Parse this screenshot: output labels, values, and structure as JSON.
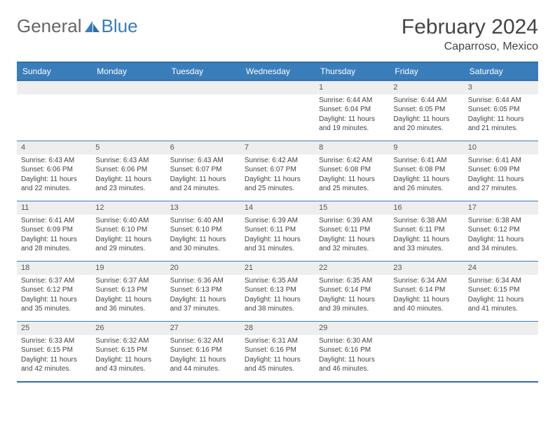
{
  "brand": {
    "part1": "General",
    "part2": "Blue",
    "color": "#3A7DBB"
  },
  "title": "February 2024",
  "location": "Caparroso, Mexico",
  "theme": {
    "header_bg": "#3A7DBB",
    "header_text": "#ffffff",
    "daynum_bg": "#EEEEEE",
    "border": "#2E6FA6",
    "text": "#333333"
  },
  "weekdays": [
    "Sunday",
    "Monday",
    "Tuesday",
    "Wednesday",
    "Thursday",
    "Friday",
    "Saturday"
  ],
  "grid": {
    "cols": 7,
    "leading_blanks": 4,
    "trailing_blanks": 2
  },
  "days": [
    {
      "n": "1",
      "sunrise": "Sunrise: 6:44 AM",
      "sunset": "Sunset: 6:04 PM",
      "daylight": "Daylight: 11 hours and 19 minutes."
    },
    {
      "n": "2",
      "sunrise": "Sunrise: 6:44 AM",
      "sunset": "Sunset: 6:05 PM",
      "daylight": "Daylight: 11 hours and 20 minutes."
    },
    {
      "n": "3",
      "sunrise": "Sunrise: 6:44 AM",
      "sunset": "Sunset: 6:05 PM",
      "daylight": "Daylight: 11 hours and 21 minutes."
    },
    {
      "n": "4",
      "sunrise": "Sunrise: 6:43 AM",
      "sunset": "Sunset: 6:06 PM",
      "daylight": "Daylight: 11 hours and 22 minutes."
    },
    {
      "n": "5",
      "sunrise": "Sunrise: 6:43 AM",
      "sunset": "Sunset: 6:06 PM",
      "daylight": "Daylight: 11 hours and 23 minutes."
    },
    {
      "n": "6",
      "sunrise": "Sunrise: 6:43 AM",
      "sunset": "Sunset: 6:07 PM",
      "daylight": "Daylight: 11 hours and 24 minutes."
    },
    {
      "n": "7",
      "sunrise": "Sunrise: 6:42 AM",
      "sunset": "Sunset: 6:07 PM",
      "daylight": "Daylight: 11 hours and 25 minutes."
    },
    {
      "n": "8",
      "sunrise": "Sunrise: 6:42 AM",
      "sunset": "Sunset: 6:08 PM",
      "daylight": "Daylight: 11 hours and 25 minutes."
    },
    {
      "n": "9",
      "sunrise": "Sunrise: 6:41 AM",
      "sunset": "Sunset: 6:08 PM",
      "daylight": "Daylight: 11 hours and 26 minutes."
    },
    {
      "n": "10",
      "sunrise": "Sunrise: 6:41 AM",
      "sunset": "Sunset: 6:09 PM",
      "daylight": "Daylight: 11 hours and 27 minutes."
    },
    {
      "n": "11",
      "sunrise": "Sunrise: 6:41 AM",
      "sunset": "Sunset: 6:09 PM",
      "daylight": "Daylight: 11 hours and 28 minutes."
    },
    {
      "n": "12",
      "sunrise": "Sunrise: 6:40 AM",
      "sunset": "Sunset: 6:10 PM",
      "daylight": "Daylight: 11 hours and 29 minutes."
    },
    {
      "n": "13",
      "sunrise": "Sunrise: 6:40 AM",
      "sunset": "Sunset: 6:10 PM",
      "daylight": "Daylight: 11 hours and 30 minutes."
    },
    {
      "n": "14",
      "sunrise": "Sunrise: 6:39 AM",
      "sunset": "Sunset: 6:11 PM",
      "daylight": "Daylight: 11 hours and 31 minutes."
    },
    {
      "n": "15",
      "sunrise": "Sunrise: 6:39 AM",
      "sunset": "Sunset: 6:11 PM",
      "daylight": "Daylight: 11 hours and 32 minutes."
    },
    {
      "n": "16",
      "sunrise": "Sunrise: 6:38 AM",
      "sunset": "Sunset: 6:11 PM",
      "daylight": "Daylight: 11 hours and 33 minutes."
    },
    {
      "n": "17",
      "sunrise": "Sunrise: 6:38 AM",
      "sunset": "Sunset: 6:12 PM",
      "daylight": "Daylight: 11 hours and 34 minutes."
    },
    {
      "n": "18",
      "sunrise": "Sunrise: 6:37 AM",
      "sunset": "Sunset: 6:12 PM",
      "daylight": "Daylight: 11 hours and 35 minutes."
    },
    {
      "n": "19",
      "sunrise": "Sunrise: 6:37 AM",
      "sunset": "Sunset: 6:13 PM",
      "daylight": "Daylight: 11 hours and 36 minutes."
    },
    {
      "n": "20",
      "sunrise": "Sunrise: 6:36 AM",
      "sunset": "Sunset: 6:13 PM",
      "daylight": "Daylight: 11 hours and 37 minutes."
    },
    {
      "n": "21",
      "sunrise": "Sunrise: 6:35 AM",
      "sunset": "Sunset: 6:13 PM",
      "daylight": "Daylight: 11 hours and 38 minutes."
    },
    {
      "n": "22",
      "sunrise": "Sunrise: 6:35 AM",
      "sunset": "Sunset: 6:14 PM",
      "daylight": "Daylight: 11 hours and 39 minutes."
    },
    {
      "n": "23",
      "sunrise": "Sunrise: 6:34 AM",
      "sunset": "Sunset: 6:14 PM",
      "daylight": "Daylight: 11 hours and 40 minutes."
    },
    {
      "n": "24",
      "sunrise": "Sunrise: 6:34 AM",
      "sunset": "Sunset: 6:15 PM",
      "daylight": "Daylight: 11 hours and 41 minutes."
    },
    {
      "n": "25",
      "sunrise": "Sunrise: 6:33 AM",
      "sunset": "Sunset: 6:15 PM",
      "daylight": "Daylight: 11 hours and 42 minutes."
    },
    {
      "n": "26",
      "sunrise": "Sunrise: 6:32 AM",
      "sunset": "Sunset: 6:15 PM",
      "daylight": "Daylight: 11 hours and 43 minutes."
    },
    {
      "n": "27",
      "sunrise": "Sunrise: 6:32 AM",
      "sunset": "Sunset: 6:16 PM",
      "daylight": "Daylight: 11 hours and 44 minutes."
    },
    {
      "n": "28",
      "sunrise": "Sunrise: 6:31 AM",
      "sunset": "Sunset: 6:16 PM",
      "daylight": "Daylight: 11 hours and 45 minutes."
    },
    {
      "n": "29",
      "sunrise": "Sunrise: 6:30 AM",
      "sunset": "Sunset: 6:16 PM",
      "daylight": "Daylight: 11 hours and 46 minutes."
    }
  ]
}
